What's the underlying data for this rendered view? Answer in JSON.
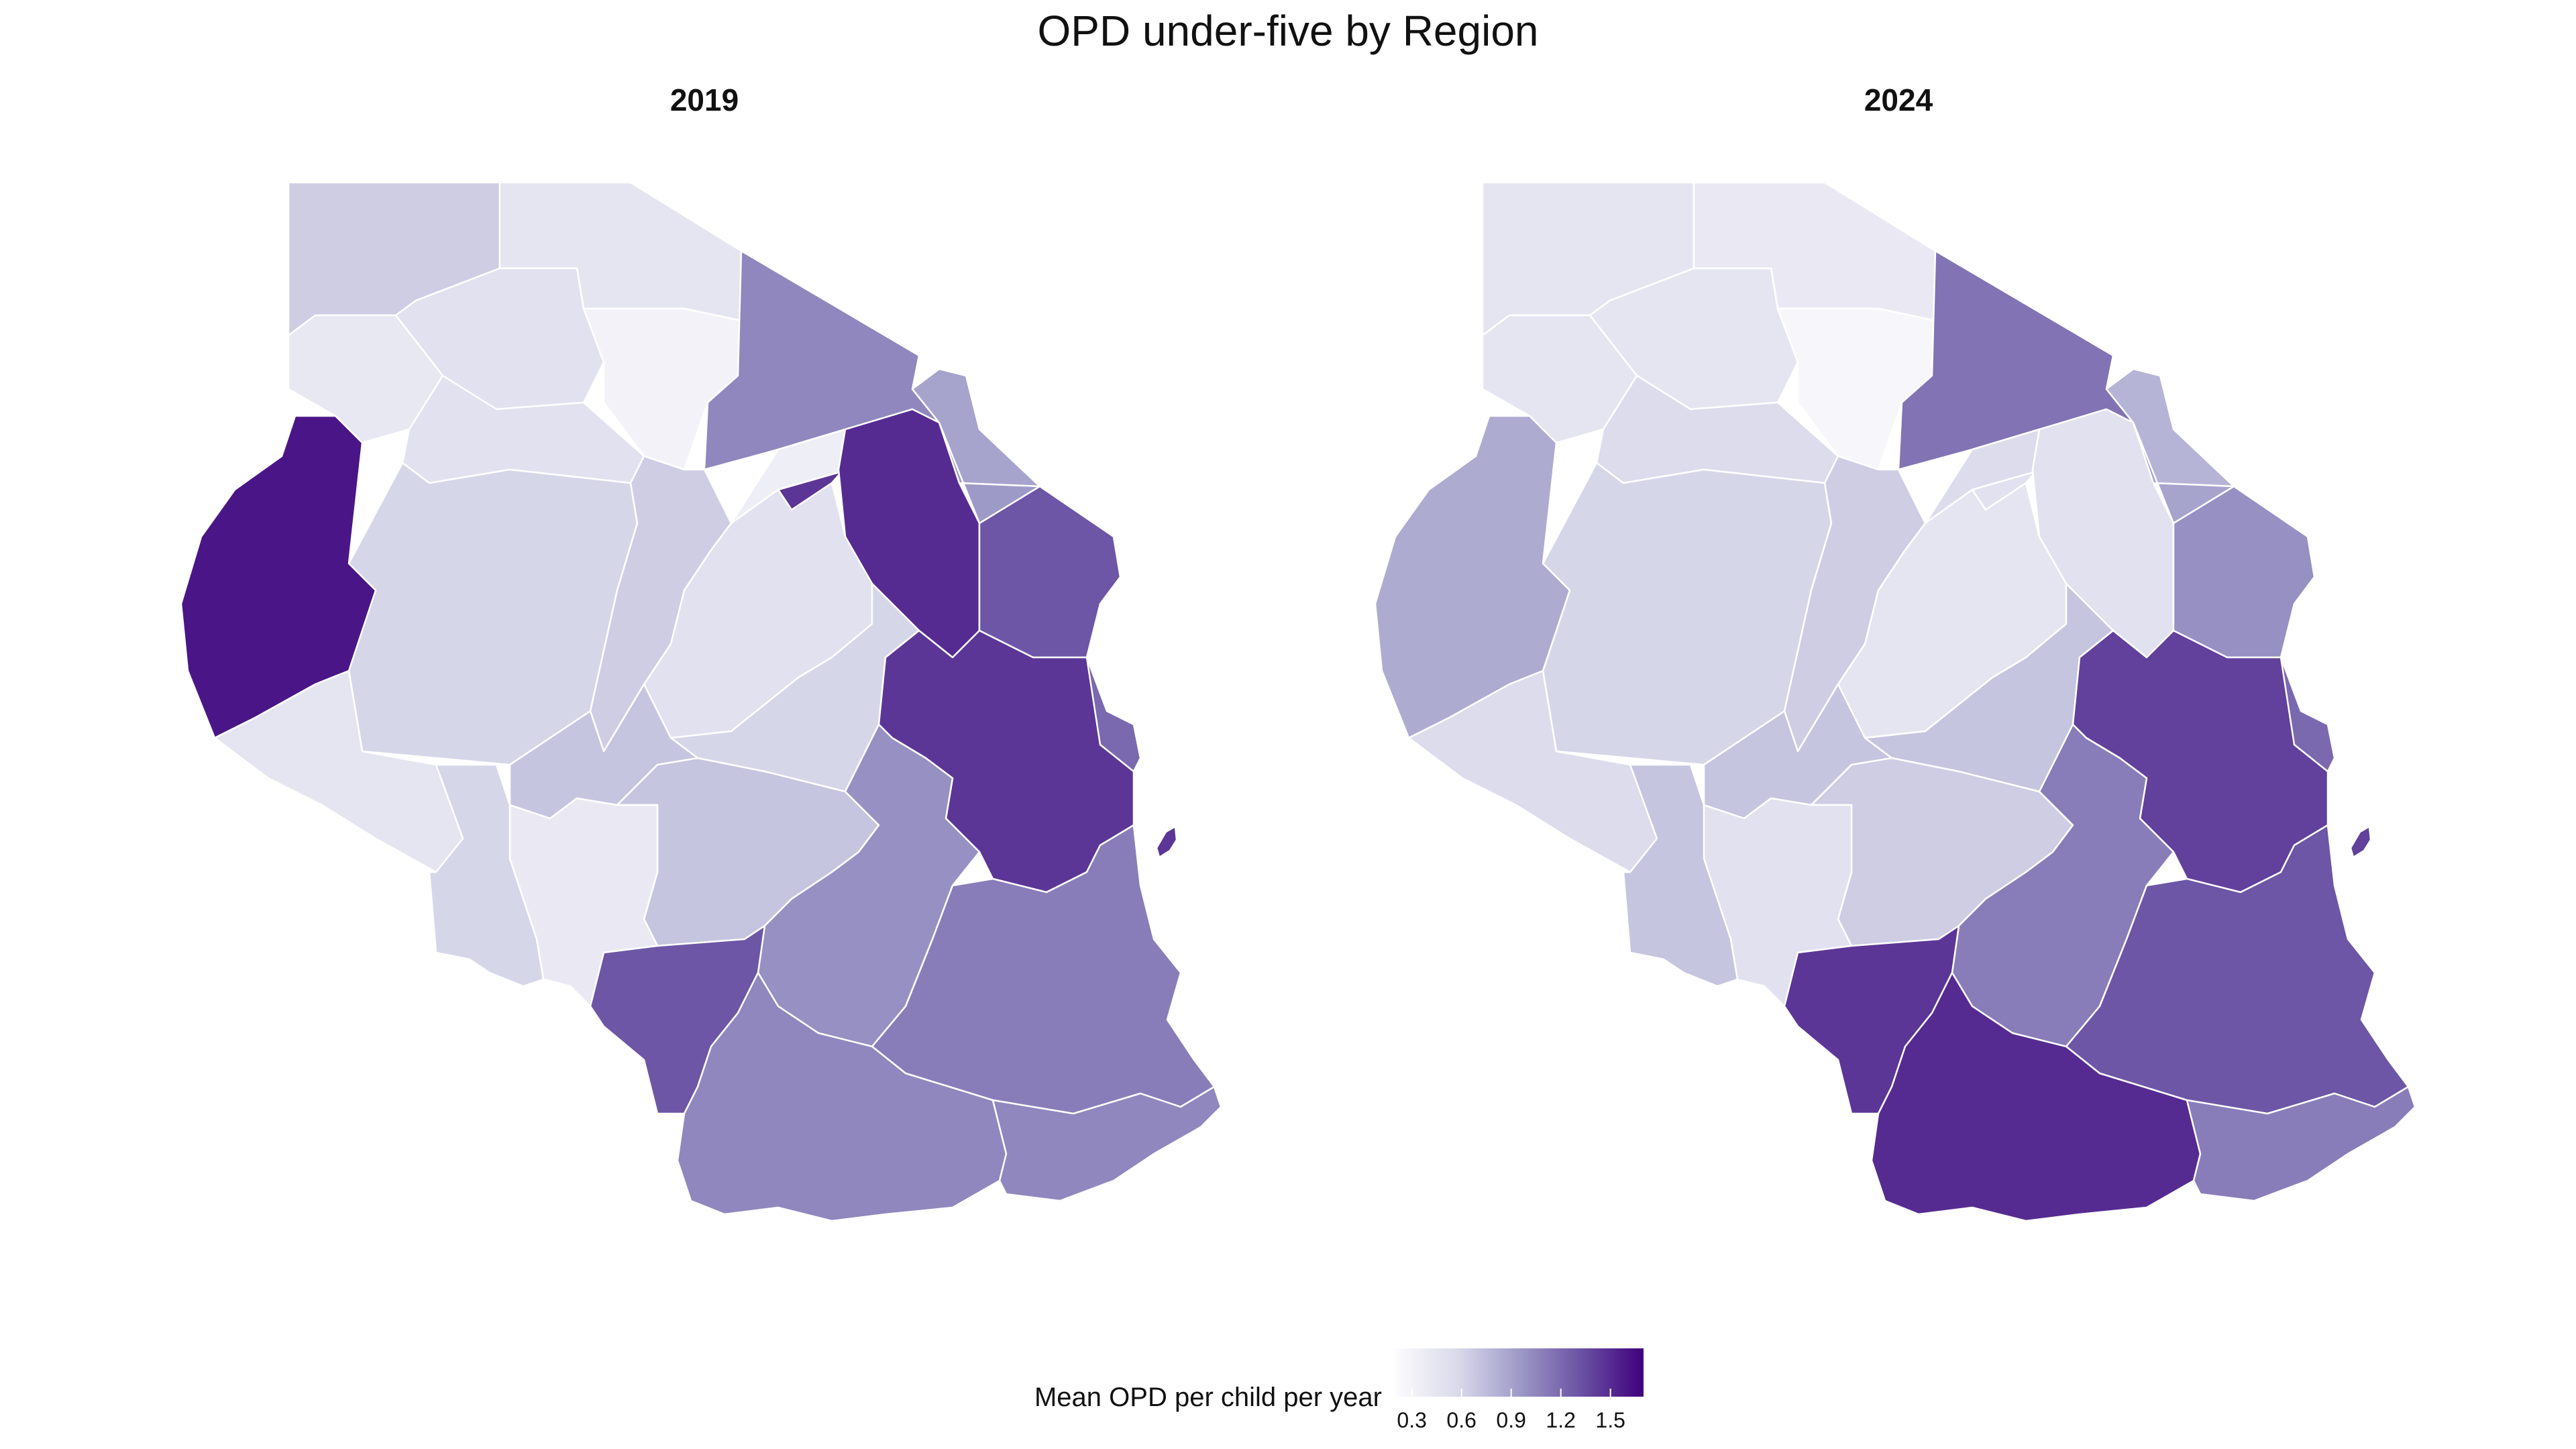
{
  "title": "OPD under-five by Region",
  "legend": {
    "title": "Mean OPD per child per year",
    "ticks": [
      "0.3",
      "0.6",
      "0.9",
      "1.2",
      "1.5"
    ],
    "tick_values": [
      0.3,
      0.6,
      0.9,
      1.2,
      1.5
    ],
    "range": [
      0.2,
      1.7
    ],
    "palette": [
      "#fcfbfd",
      "#dadaeb",
      "#9e9ac8",
      "#6a51a3",
      "#3f007d"
    ]
  },
  "chart_data": {
    "type": "choropleth",
    "variable": "Mean OPD per child per year",
    "panels": [
      {
        "label": "2019",
        "values": {
          "R01": 0.65,
          "R02": 0.45,
          "R03": 0.5,
          "R04": 0.42,
          "R05": 0.3,
          "R06": 1.05,
          "R07": 0.9,
          "R08": 0.5,
          "R09": 0.6,
          "R10": 1.6,
          "R11": 0.65,
          "R12": 0.35,
          "R13": 1.45,
          "R14": 1.5,
          "R15": 0.95,
          "R16": 1.3,
          "R17": 0.5,
          "R18": 0.6,
          "R19": 0.45,
          "R20": 0.7,
          "R21": 1.45,
          "R22": 1.2,
          "R23": 0.7,
          "R24": 1.0,
          "R25": 0.4,
          "R26": 0.6,
          "R27": 1.3,
          "R28": 1.1,
          "R29": 1.05,
          "R30": 1.05
        }
      },
      {
        "label": "2024",
        "values": {
          "R01": 0.45,
          "R02": 0.4,
          "R03": 0.45,
          "R04": 0.45,
          "R05": 0.25,
          "R06": 1.15,
          "R07": 0.8,
          "R08": 0.55,
          "R09": 0.6,
          "R10": 0.85,
          "R11": 0.65,
          "R12": 0.55,
          "R13": 0.5,
          "R14": 0.5,
          "R15": 0.9,
          "R16": 1.0,
          "R17": 0.45,
          "R18": 0.7,
          "R19": 0.55,
          "R20": 0.7,
          "R21": 1.4,
          "R22": 1.2,
          "R23": 0.65,
          "R24": 1.1,
          "R25": 0.5,
          "R26": 0.7,
          "R27": 1.45,
          "R28": 1.3,
          "R29": 1.5,
          "R30": 1.1
        }
      }
    ]
  }
}
